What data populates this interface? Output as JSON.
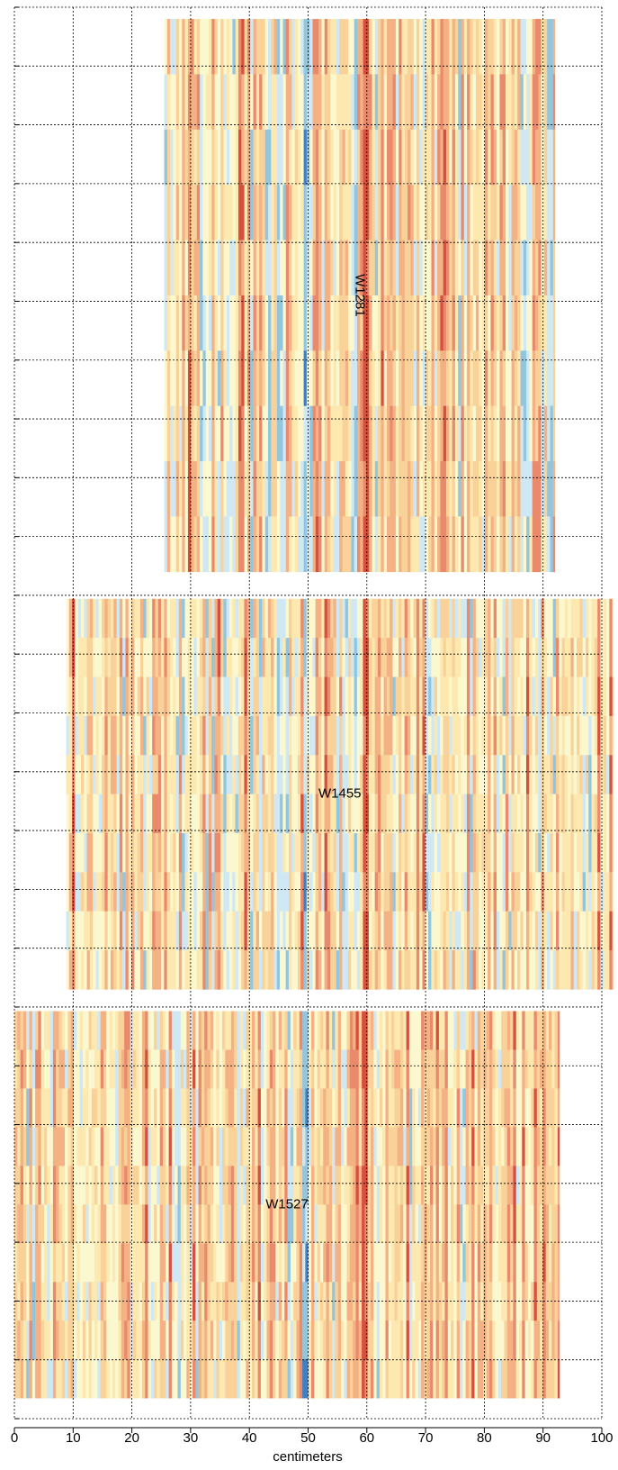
{
  "chart_data": {
    "type": "heatmap",
    "xlabel": "centimeters",
    "xlim": [
      0,
      100
    ],
    "xticks": [
      0,
      10,
      20,
      30,
      40,
      50,
      60,
      70,
      80,
      90,
      100
    ],
    "ylim": [
      0,
      240
    ],
    "yticks": [
      0,
      10,
      20,
      30,
      40,
      50,
      60,
      70,
      80,
      90,
      100,
      110,
      120,
      130,
      140,
      150,
      160,
      170,
      180,
      190,
      200,
      210,
      220,
      230,
      240
    ],
    "grid": true,
    "panels": [
      {
        "name": "W1281",
        "xrange": [
          25.5,
          92
        ],
        "yrange": [
          2,
          96
        ]
      },
      {
        "name": "W1455",
        "xrange": [
          8.8,
          102
        ],
        "yrange": [
          100.6,
          167
        ]
      },
      {
        "name": "W1527",
        "xrange": [
          0,
          92.8
        ],
        "yrange": [
          170.7,
          236.5
        ]
      }
    ]
  }
}
